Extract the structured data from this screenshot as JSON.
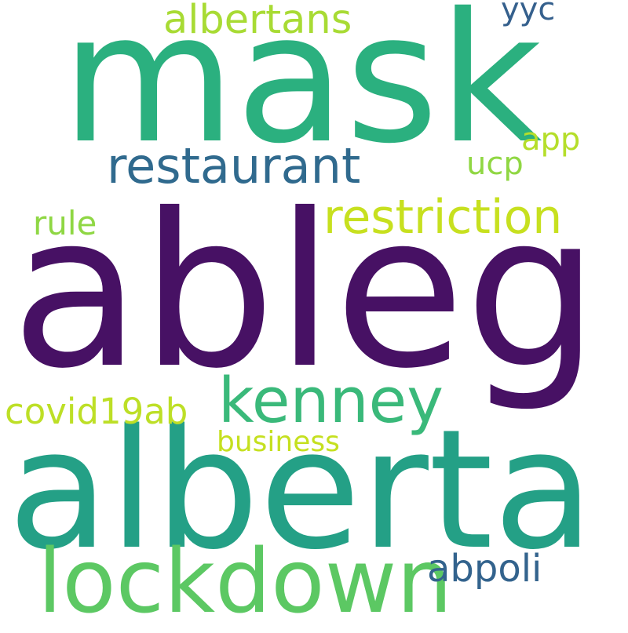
{
  "words": [
    {
      "text": "ableg",
      "color": "#471164"
    },
    {
      "text": "alberta",
      "color": "#24a086"
    },
    {
      "text": "mask",
      "color": "#2bb07f"
    },
    {
      "text": "lockdown",
      "color": "#5cc863"
    },
    {
      "text": "kenney",
      "color": "#3ab97a"
    },
    {
      "text": "restaurant",
      "color": "#306a8e"
    },
    {
      "text": "restriction",
      "color": "#c7e01f"
    },
    {
      "text": "albertans",
      "color": "#a8db34"
    },
    {
      "text": "covid19ab",
      "color": "#bddf26"
    },
    {
      "text": "business",
      "color": "#c5e01f"
    },
    {
      "text": "abpoli",
      "color": "#33638d"
    },
    {
      "text": "rule",
      "color": "#8fd744"
    },
    {
      "text": "app",
      "color": "#b5de2b"
    },
    {
      "text": "ucp",
      "color": "#90d743"
    },
    {
      "text": "yyc",
      "color": "#35608d"
    }
  ]
}
